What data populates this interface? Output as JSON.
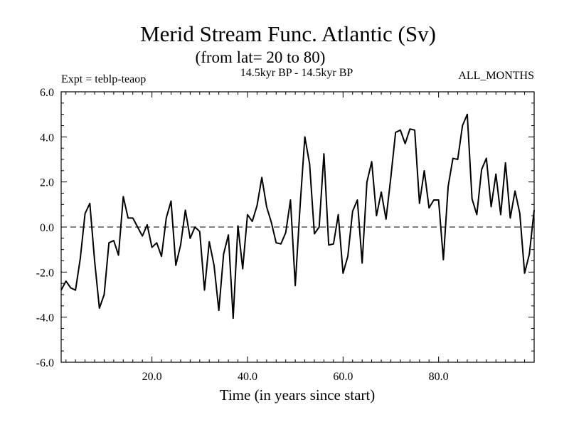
{
  "chart_data": {
    "type": "line",
    "title": "Merid Stream Func. Atlantic (Sv)",
    "subtitle": "(from lat= 20 to 80)",
    "expt_label": "Expt = teblp-teaop",
    "period_label": "14.5kyr BP - 14.5kyr BP",
    "months_label": "ALL_MONTHS",
    "xlabel": "Time (in years since start)",
    "ylabel": "",
    "xlim": [
      1,
      100
    ],
    "ylim": [
      -6.0,
      6.0
    ],
    "x_ticks": [
      20,
      40,
      60,
      80
    ],
    "x_tick_labels": [
      "20.0",
      "40.0",
      "60.0",
      "80.0"
    ],
    "y_ticks": [
      -6,
      -4,
      -2,
      0,
      2,
      4,
      6
    ],
    "y_tick_labels": [
      "-6.0",
      "-4.0",
      "-2.0",
      "0.0",
      "2.0",
      "4.0",
      "6.0"
    ],
    "zero_line": "dashed",
    "series": [
      {
        "name": "Merid Stream Func.",
        "color": "#000000",
        "x_start": 1,
        "x_step": 1,
        "values": [
          -2.8,
          -2.4,
          -2.7,
          -2.8,
          -1.4,
          0.6,
          1.05,
          -1.5,
          -3.6,
          -3.0,
          -0.7,
          -0.6,
          -1.25,
          1.35,
          0.4,
          0.4,
          0.0,
          -0.4,
          0.1,
          -0.9,
          -0.7,
          -1.3,
          0.4,
          1.15,
          -1.7,
          -0.8,
          0.75,
          -0.5,
          0.0,
          -0.2,
          -2.8,
          -0.65,
          -1.7,
          -3.7,
          -1.2,
          -0.35,
          -4.05,
          0.05,
          -1.85,
          0.55,
          0.25,
          0.95,
          2.2,
          0.9,
          0.2,
          -0.7,
          -0.75,
          -0.25,
          1.2,
          -2.6,
          0.9,
          4.0,
          2.8,
          -0.3,
          0.0,
          3.25,
          -0.8,
          -0.75,
          0.55,
          -2.05,
          -1.3,
          0.7,
          1.2,
          -1.6,
          2.0,
          2.9,
          0.5,
          1.55,
          0.35,
          2.2,
          4.2,
          4.3,
          3.7,
          4.35,
          4.3,
          1.05,
          2.5,
          0.85,
          1.2,
          1.2,
          -1.45,
          1.8,
          3.05,
          3.0,
          4.5,
          5.0,
          1.25,
          0.55,
          2.55,
          3.05,
          0.9,
          2.35,
          0.55,
          2.85,
          0.4,
          1.6,
          0.6,
          -2.05,
          -1.2,
          0.75
        ]
      }
    ]
  }
}
